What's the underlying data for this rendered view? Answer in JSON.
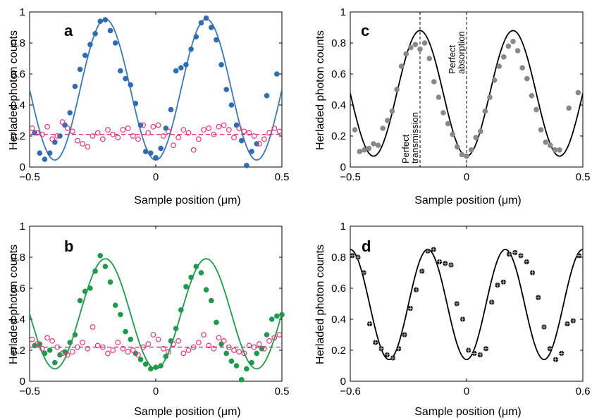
{
  "chart_data": [
    {
      "panel": "a",
      "type": "scatter",
      "xlabel": "Sample position (μm)",
      "ylabel": "Herladed photon counts",
      "xlim": [
        -0.5,
        0.5
      ],
      "ylim": [
        0,
        1
      ],
      "xticks": [
        "−0.5",
        "0",
        "0.5"
      ],
      "yticks": [
        "0",
        "0.2",
        "0.4",
        "0.6",
        "0.8",
        "1"
      ],
      "fit": {
        "mean": 0.5,
        "amplitude": 0.455,
        "period": 0.4,
        "peak": -0.2,
        "color": "#3a78b8"
      },
      "baseline": {
        "value": 0.21,
        "color": "#e0387a"
      },
      "series": [
        {
          "style": "filled",
          "color": "#2e6db4",
          "x": [
            -0.48,
            -0.46,
            -0.44,
            -0.42,
            -0.4,
            -0.38,
            -0.36,
            -0.34,
            -0.32,
            -0.3,
            -0.28,
            -0.26,
            -0.24,
            -0.22,
            -0.2,
            -0.18,
            -0.16,
            -0.14,
            -0.12,
            -0.1,
            -0.08,
            -0.06,
            -0.04,
            -0.02,
            0.0,
            0.02,
            0.04,
            0.06,
            0.08,
            0.1,
            0.12,
            0.14,
            0.16,
            0.18,
            0.2,
            0.22,
            0.24,
            0.26,
            0.28,
            0.3,
            0.32,
            0.34,
            0.36,
            0.38,
            0.4,
            0.44,
            0.48
          ],
          "y": [
            0.22,
            0.09,
            0.05,
            0.09,
            0.16,
            0.2,
            0.27,
            0.35,
            0.52,
            0.63,
            0.72,
            0.79,
            0.86,
            0.94,
            0.95,
            0.88,
            0.8,
            0.62,
            0.57,
            0.53,
            0.41,
            0.27,
            0.1,
            0.09,
            0.06,
            0.12,
            0.25,
            0.37,
            0.62,
            0.64,
            0.66,
            0.76,
            0.84,
            0.93,
            0.96,
            0.9,
            0.82,
            0.66,
            0.5,
            0.4,
            0.27,
            0.17,
            0.01,
            0.1,
            0.15,
            0.46,
            0.6
          ]
        },
        {
          "style": "open",
          "color": "#e0387a",
          "x": [
            -0.49,
            -0.47,
            -0.45,
            -0.43,
            -0.41,
            -0.39,
            -0.37,
            -0.35,
            -0.33,
            -0.31,
            -0.29,
            -0.27,
            -0.25,
            -0.23,
            -0.21,
            -0.19,
            -0.17,
            -0.15,
            -0.13,
            -0.11,
            -0.09,
            -0.07,
            -0.05,
            -0.03,
            -0.01,
            0.01,
            0.03,
            0.05,
            0.07,
            0.09,
            0.11,
            0.13,
            0.15,
            0.17,
            0.19,
            0.21,
            0.23,
            0.25,
            0.27,
            0.29,
            0.31,
            0.33,
            0.35,
            0.37,
            0.39,
            0.41,
            0.43,
            0.45,
            0.47,
            0.49
          ],
          "y": [
            0.25,
            0.22,
            0.21,
            0.26,
            0.18,
            0.2,
            0.29,
            0.25,
            0.23,
            0.17,
            0.15,
            0.13,
            0.2,
            0.22,
            0.18,
            0.24,
            0.21,
            0.19,
            0.24,
            0.25,
            0.2,
            0.18,
            0.27,
            0.22,
            0.26,
            0.27,
            0.2,
            0.23,
            0.14,
            0.19,
            0.24,
            0.22,
            0.11,
            0.18,
            0.24,
            0.25,
            0.21,
            0.26,
            0.27,
            0.24,
            0.19,
            0.25,
            0.23,
            0.22,
            0.2,
            0.15,
            0.18,
            0.22,
            0.25,
            0.23
          ]
        }
      ]
    },
    {
      "panel": "b",
      "type": "scatter",
      "xlabel": "Sample position (μm)",
      "ylabel": "Herladed photon counts",
      "xlim": [
        -0.5,
        0.5
      ],
      "ylim": [
        0,
        1
      ],
      "xticks": [
        "−0.5",
        "0",
        "0.5"
      ],
      "yticks": [
        "0",
        "0.2",
        "0.4",
        "0.6",
        "0.8",
        "1"
      ],
      "fit": {
        "mean": 0.435,
        "amplitude": 0.355,
        "period": 0.4,
        "peak": -0.2,
        "color": "#1f9a4a"
      },
      "baseline": {
        "value": 0.22,
        "color": "#e0387a"
      },
      "series": [
        {
          "style": "filled",
          "color": "#1f9a4a",
          "x": [
            -0.48,
            -0.46,
            -0.44,
            -0.42,
            -0.4,
            -0.38,
            -0.36,
            -0.34,
            -0.32,
            -0.3,
            -0.28,
            -0.26,
            -0.24,
            -0.22,
            -0.2,
            -0.18,
            -0.16,
            -0.14,
            -0.12,
            -0.1,
            -0.08,
            -0.06,
            -0.04,
            -0.02,
            0.0,
            0.02,
            0.04,
            0.06,
            0.08,
            0.1,
            0.12,
            0.14,
            0.16,
            0.18,
            0.2,
            0.22,
            0.24,
            0.26,
            0.28,
            0.3,
            0.32,
            0.34,
            0.36,
            0.38,
            0.4,
            0.42,
            0.44,
            0.46,
            0.48,
            0.5
          ],
          "y": [
            0.23,
            0.24,
            0.18,
            0.2,
            0.12,
            0.17,
            0.19,
            0.25,
            0.3,
            0.52,
            0.58,
            0.6,
            0.71,
            0.81,
            0.74,
            0.64,
            0.49,
            0.43,
            0.32,
            0.27,
            0.18,
            0.14,
            0.11,
            0.08,
            0.09,
            0.1,
            0.16,
            0.26,
            0.34,
            0.46,
            0.61,
            0.67,
            0.74,
            0.7,
            0.59,
            0.52,
            0.38,
            0.24,
            0.18,
            0.13,
            0.1,
            0.01,
            0.08,
            0.12,
            0.18,
            0.21,
            0.3,
            0.4,
            0.42,
            0.43
          ]
        },
        {
          "style": "open",
          "color": "#e0387a",
          "x": [
            -0.49,
            -0.47,
            -0.45,
            -0.43,
            -0.41,
            -0.39,
            -0.37,
            -0.35,
            -0.33,
            -0.31,
            -0.29,
            -0.27,
            -0.25,
            -0.23,
            -0.21,
            -0.19,
            -0.17,
            -0.15,
            -0.13,
            -0.11,
            -0.09,
            -0.07,
            -0.05,
            -0.03,
            -0.01,
            0.01,
            0.03,
            0.05,
            0.07,
            0.09,
            0.11,
            0.13,
            0.15,
            0.17,
            0.19,
            0.21,
            0.23,
            0.25,
            0.27,
            0.29,
            0.31,
            0.33,
            0.35,
            0.37,
            0.39,
            0.41,
            0.43,
            0.45,
            0.47,
            0.49
          ],
          "y": [
            0.27,
            0.24,
            0.21,
            0.28,
            0.26,
            0.22,
            0.18,
            0.17,
            0.19,
            0.22,
            0.25,
            0.21,
            0.35,
            0.23,
            0.22,
            0.18,
            0.2,
            0.25,
            0.21,
            0.19,
            0.2,
            0.17,
            0.22,
            0.24,
            0.3,
            0.27,
            0.21,
            0.19,
            0.24,
            0.26,
            0.18,
            0.2,
            0.22,
            0.25,
            0.3,
            0.23,
            0.21,
            0.28,
            0.26,
            0.22,
            0.2,
            0.19,
            0.18,
            0.23,
            0.22,
            0.24,
            0.21,
            0.26,
            0.28,
            0.3
          ]
        }
      ]
    },
    {
      "panel": "c",
      "type": "scatter",
      "xlabel": "Sample position (μm)",
      "ylabel": "Herladed photon counts",
      "xlim": [
        -0.5,
        0.5
      ],
      "ylim": [
        0,
        1
      ],
      "xticks": [
        "−0.5",
        "0",
        "0.5"
      ],
      "yticks": [
        "0",
        "0.2",
        "0.4",
        "0.6",
        "0.8",
        "1"
      ],
      "fit": {
        "mean": 0.475,
        "amplitude": 0.405,
        "period": 0.4,
        "peak": -0.2,
        "color": "#000000"
      },
      "vlines": [
        {
          "x": -0.2,
          "label": [
            "Perfect",
            "transmission"
          ]
        },
        {
          "x": 0.0,
          "label": [
            "Perfect",
            "absorption"
          ]
        }
      ],
      "series": [
        {
          "style": "filled",
          "color": "#888888",
          "x": [
            -0.48,
            -0.46,
            -0.44,
            -0.42,
            -0.4,
            -0.38,
            -0.36,
            -0.34,
            -0.32,
            -0.3,
            -0.28,
            -0.26,
            -0.24,
            -0.22,
            -0.2,
            -0.18,
            -0.16,
            -0.14,
            -0.12,
            -0.1,
            -0.08,
            -0.06,
            -0.04,
            -0.02,
            0.0,
            0.02,
            0.04,
            0.06,
            0.08,
            0.1,
            0.12,
            0.14,
            0.16,
            0.18,
            0.2,
            0.22,
            0.24,
            0.26,
            0.28,
            0.3,
            0.32,
            0.34,
            0.36,
            0.38,
            0.4,
            0.44,
            0.48
          ],
          "y": [
            0.24,
            0.1,
            0.11,
            0.12,
            0.15,
            0.14,
            0.25,
            0.3,
            0.36,
            0.5,
            0.65,
            0.73,
            0.77,
            0.79,
            0.76,
            0.8,
            0.7,
            0.55,
            0.45,
            0.35,
            0.28,
            0.21,
            0.13,
            0.08,
            0.07,
            0.11,
            0.19,
            0.23,
            0.36,
            0.45,
            0.56,
            0.65,
            0.71,
            0.78,
            0.81,
            0.75,
            0.64,
            0.57,
            0.46,
            0.37,
            0.24,
            0.16,
            0.14,
            0.11,
            0.11,
            0.38,
            0.48
          ]
        }
      ]
    },
    {
      "panel": "d",
      "type": "scatter",
      "xlabel": "Sample position (μm)",
      "ylabel": "Herladed photon counts",
      "xlim": [
        -0.6,
        0.6
      ],
      "ylim": [
        0,
        1
      ],
      "xticks": [
        "−0.6",
        "0",
        "0.6"
      ],
      "yticks": [
        "0",
        "0.2",
        "0.4",
        "0.6",
        "0.8",
        "1"
      ],
      "fit": {
        "mean": 0.495,
        "amplitude": 0.355,
        "period": 0.4,
        "peak": -0.2,
        "color": "#000000"
      },
      "series": [
        {
          "style": "crossed",
          "color": "#111111",
          "x": [
            -0.59,
            -0.56,
            -0.53,
            -0.5,
            -0.47,
            -0.44,
            -0.41,
            -0.38,
            -0.35,
            -0.32,
            -0.29,
            -0.26,
            -0.23,
            -0.2,
            -0.17,
            -0.14,
            -0.11,
            -0.08,
            -0.05,
            -0.02,
            0.01,
            0.04,
            0.07,
            0.1,
            0.13,
            0.16,
            0.19,
            0.22,
            0.25,
            0.28,
            0.31,
            0.34,
            0.37,
            0.4,
            0.43,
            0.46,
            0.49,
            0.52,
            0.55,
            0.58
          ],
          "y": [
            0.81,
            0.8,
            0.7,
            0.37,
            0.25,
            0.21,
            0.17,
            0.15,
            0.21,
            0.3,
            0.47,
            0.59,
            0.71,
            0.84,
            0.85,
            0.77,
            0.76,
            0.75,
            0.5,
            0.4,
            0.2,
            0.18,
            0.17,
            0.21,
            0.51,
            0.62,
            0.64,
            0.82,
            0.83,
            0.81,
            0.77,
            0.7,
            0.54,
            0.35,
            0.21,
            0.14,
            0.18,
            0.37,
            0.39,
            0.81
          ]
        }
      ]
    }
  ]
}
